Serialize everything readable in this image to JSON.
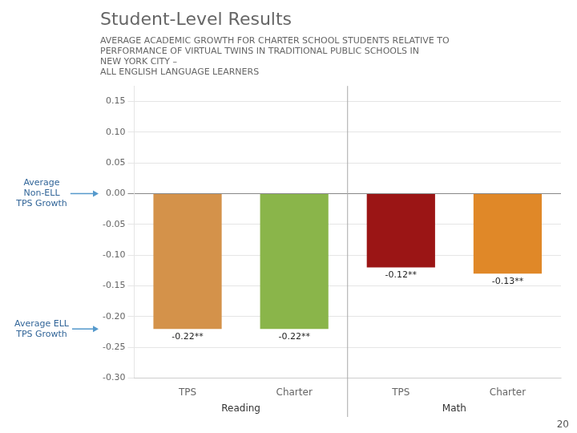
{
  "chart_data": {
    "type": "bar",
    "title": "Student-Level Results",
    "subtitle": [
      "AVERAGE ACADEMIC GROWTH FOR CHARTER SCHOOL STUDENTS RELATIVE TO",
      "PERFORMANCE OF VIRTUAL TWINS IN TRADITIONAL PUBLIC SCHOOLS IN",
      "NEW YORK CITY –",
      "ALL ENGLISH LANGUAGE LEARNERS"
    ],
    "categories": [
      "TPS",
      "Charter",
      "TPS",
      "Charter"
    ],
    "group_labels": [
      "Reading",
      "Math"
    ],
    "values": [
      -0.22,
      -0.22,
      -0.12,
      -0.13
    ],
    "value_labels": [
      "-0.22**",
      "-0.22**",
      "-0.12**",
      "-0.13**"
    ],
    "data_labels": true,
    "colors": [
      "#d4924a",
      "#8ab54a",
      "#9b1515",
      "#e08828"
    ],
    "ylim": [
      -0.3,
      0.175
    ],
    "yticks": [
      0.15,
      {
        "value": 0.1,
        "label": "0.10"
      },
      0.05,
      {
        "value": 0.0,
        "label": "0.00"
      },
      -0.05,
      {
        "value": -0.1,
        "label": "-0.10"
      },
      -0.15,
      {
        "value": -0.2,
        "label": "-0.20"
      },
      -0.25,
      {
        "value": -0.3,
        "label": "-0.30"
      }
    ],
    "grid": true,
    "annotations": [
      {
        "text": "Average\nNon-ELL\nTPS Growth",
        "y": 0.0
      },
      {
        "text": "Average ELL\nTPS Growth",
        "y": -0.22
      }
    ],
    "page_number": "20"
  }
}
